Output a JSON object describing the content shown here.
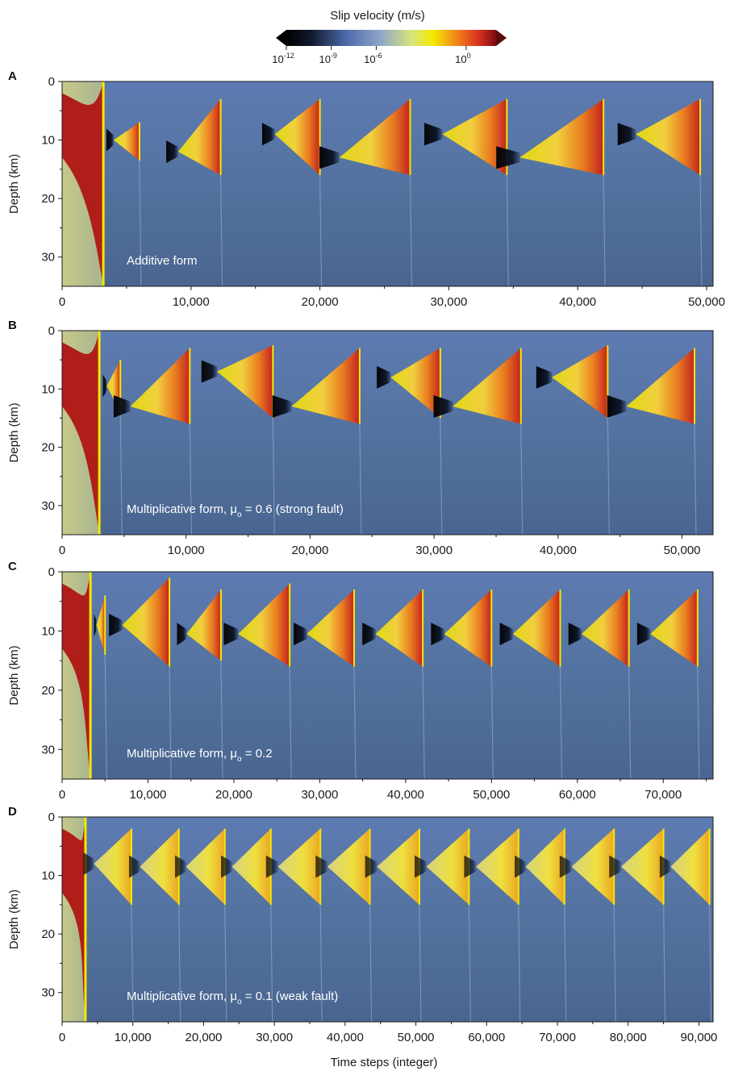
{
  "colorbar": {
    "title": "Slip velocity (m/s)",
    "ticks": [
      {
        "base": "10",
        "exp": "-12",
        "value_log10": -12
      },
      {
        "base": "10",
        "exp": "-9",
        "value_log10": -9
      },
      {
        "base": "10",
        "exp": "-6",
        "value_log10": -6
      },
      {
        "base": "10",
        "exp": "0",
        "value_log10": 0
      }
    ],
    "scale": "log",
    "colors": [
      "#000000",
      "#1e2c48",
      "#5a7fc0",
      "#8fa6c8",
      "#d9e67a",
      "#f5e800",
      "#f07d1a",
      "#d7301f",
      "#8a0f10"
    ]
  },
  "xlabel": "Time steps (integer)",
  "chart_data": [
    {
      "type": "heatmap",
      "panel_label": "A",
      "annotation": {
        "text": "Additive form",
        "sym": "",
        "sub": "",
        "rest": ""
      },
      "ylabel": "Depth (km)",
      "yticks": [
        "0",
        "10",
        "20",
        "30"
      ],
      "ylim": [
        0,
        35
      ],
      "y_inverted": true,
      "xlim": [
        0,
        50500
      ],
      "xticks": [
        0,
        10000,
        20000,
        30000,
        40000,
        50000
      ],
      "xtick_labels": [
        "0",
        "10,000",
        "20,000",
        "30,000",
        "40,000",
        "50,000"
      ],
      "spinup_end": 3200,
      "events": [
        {
          "t_start": 4000,
          "t_end": 6000,
          "hypo_depth": 10,
          "top_depth": 7,
          "bottom_depth": 13.5
        },
        {
          "t_start": 9000,
          "t_end": 12300,
          "hypo_depth": 12,
          "top_depth": 3,
          "bottom_depth": 16
        },
        {
          "t_start": 16500,
          "t_end": 20000,
          "hypo_depth": 9,
          "top_depth": 3,
          "bottom_depth": 16
        },
        {
          "t_start": 21500,
          "t_end": 27000,
          "hypo_depth": 13,
          "top_depth": 3,
          "bottom_depth": 16
        },
        {
          "t_start": 29500,
          "t_end": 34500,
          "hypo_depth": 9,
          "top_depth": 3,
          "bottom_depth": 16
        },
        {
          "t_start": 35500,
          "t_end": 42000,
          "hypo_depth": 13,
          "top_depth": 3,
          "bottom_depth": 16
        },
        {
          "t_start": 44500,
          "t_end": 49500,
          "hypo_depth": 9,
          "top_depth": 3,
          "bottom_depth": 16
        }
      ]
    },
    {
      "type": "heatmap",
      "panel_label": "B",
      "annotation": {
        "text": "Multiplicative form, ",
        "sym": "μ",
        "sub": "o",
        "rest": " = 0.6 (strong fault)"
      },
      "ylabel": "Depth (km)",
      "yticks": [
        "0",
        "10",
        "20",
        "30"
      ],
      "ylim": [
        0,
        35
      ],
      "y_inverted": true,
      "xlim": [
        0,
        52500
      ],
      "xticks": [
        0,
        10000,
        20000,
        30000,
        40000,
        50000
      ],
      "xtick_labels": [
        "0",
        "10,000",
        "20,000",
        "30,000",
        "40,000",
        "50,000"
      ],
      "spinup_end": 3000,
      "events": [
        {
          "t_start": 3600,
          "t_end": 4700,
          "hypo_depth": 9.5,
          "top_depth": 5,
          "bottom_depth": 14
        },
        {
          "t_start": 5500,
          "t_end": 10300,
          "hypo_depth": 13,
          "top_depth": 3,
          "bottom_depth": 16
        },
        {
          "t_start": 12500,
          "t_end": 17000,
          "hypo_depth": 7,
          "top_depth": 2.5,
          "bottom_depth": 15
        },
        {
          "t_start": 18500,
          "t_end": 24000,
          "hypo_depth": 13,
          "top_depth": 3,
          "bottom_depth": 16
        },
        {
          "t_start": 26500,
          "t_end": 30500,
          "hypo_depth": 8,
          "top_depth": 3,
          "bottom_depth": 15
        },
        {
          "t_start": 31500,
          "t_end": 37000,
          "hypo_depth": 13,
          "top_depth": 3,
          "bottom_depth": 16
        },
        {
          "t_start": 39500,
          "t_end": 44000,
          "hypo_depth": 8,
          "top_depth": 2.5,
          "bottom_depth": 15
        },
        {
          "t_start": 45500,
          "t_end": 51000,
          "hypo_depth": 13,
          "top_depth": 3,
          "bottom_depth": 16
        }
      ]
    },
    {
      "type": "heatmap",
      "panel_label": "C",
      "annotation": {
        "text": "Multiplicative form, ",
        "sym": "μ",
        "sub": "o",
        "rest": " = 0.2"
      },
      "ylabel": "Depth (km)",
      "yticks": [
        "0",
        "10",
        "20",
        "30"
      ],
      "ylim": [
        0,
        35
      ],
      "y_inverted": true,
      "xlim": [
        0,
        75800
      ],
      "xticks": [
        0,
        10000,
        20000,
        30000,
        40000,
        50000,
        60000,
        70000
      ],
      "xtick_labels": [
        "0",
        "10,000",
        "20,000",
        "30,000",
        "40,000",
        "50,000",
        "60,000",
        "70,000"
      ],
      "spinup_end": 3300,
      "events": [
        {
          "t_start": 4000,
          "t_end": 5000,
          "hypo_depth": 9,
          "top_depth": 4,
          "bottom_depth": 14
        },
        {
          "t_start": 7000,
          "t_end": 12500,
          "hypo_depth": 9,
          "top_depth": 1,
          "bottom_depth": 16
        },
        {
          "t_start": 14500,
          "t_end": 18500,
          "hypo_depth": 10.5,
          "top_depth": 3,
          "bottom_depth": 15
        },
        {
          "t_start": 20500,
          "t_end": 26500,
          "hypo_depth": 10.5,
          "top_depth": 2,
          "bottom_depth": 16
        },
        {
          "t_start": 28500,
          "t_end": 34000,
          "hypo_depth": 10.5,
          "top_depth": 3,
          "bottom_depth": 16
        },
        {
          "t_start": 36500,
          "t_end": 42000,
          "hypo_depth": 10.5,
          "top_depth": 3,
          "bottom_depth": 16
        },
        {
          "t_start": 44500,
          "t_end": 50000,
          "hypo_depth": 10.5,
          "top_depth": 3,
          "bottom_depth": 16
        },
        {
          "t_start": 52500,
          "t_end": 58000,
          "hypo_depth": 10.5,
          "top_depth": 3,
          "bottom_depth": 16
        },
        {
          "t_start": 60500,
          "t_end": 66000,
          "hypo_depth": 10.5,
          "top_depth": 3,
          "bottom_depth": 16
        },
        {
          "t_start": 68500,
          "t_end": 74000,
          "hypo_depth": 10.5,
          "top_depth": 3,
          "bottom_depth": 16
        }
      ]
    },
    {
      "type": "heatmap",
      "panel_label": "D",
      "annotation": {
        "text": "Multiplicative form, ",
        "sym": "μ",
        "sub": "o",
        "rest": " = 0.1 (weak fault)"
      },
      "ylabel": "Depth (km)",
      "yticks": [
        "0",
        "10",
        "20",
        "30"
      ],
      "ylim": [
        0,
        35
      ],
      "y_inverted": true,
      "xlim": [
        0,
        92000
      ],
      "xticks": [
        0,
        10000,
        20000,
        30000,
        40000,
        50000,
        60000,
        70000,
        80000,
        90000
      ],
      "xtick_labels": [
        "0",
        "10,000",
        "20,000",
        "30,000",
        "40,000",
        "50,000",
        "60,000",
        "70,000",
        "80,000",
        "90,000"
      ],
      "spinup_end": 3300,
      "events": [
        {
          "t_start": 4500,
          "t_end": 9800,
          "hypo_depth": 8,
          "top_depth": 2,
          "bottom_depth": 15
        },
        {
          "t_start": 11000,
          "t_end": 16500,
          "hypo_depth": 8.5,
          "top_depth": 2,
          "bottom_depth": 15
        },
        {
          "t_start": 17500,
          "t_end": 23000,
          "hypo_depth": 8.5,
          "top_depth": 2,
          "bottom_depth": 15
        },
        {
          "t_start": 24000,
          "t_end": 29500,
          "hypo_depth": 8.5,
          "top_depth": 2,
          "bottom_depth": 15
        },
        {
          "t_start": 30500,
          "t_end": 36500,
          "hypo_depth": 8.5,
          "top_depth": 2,
          "bottom_depth": 15
        },
        {
          "t_start": 37500,
          "t_end": 43500,
          "hypo_depth": 8.5,
          "top_depth": 2,
          "bottom_depth": 15
        },
        {
          "t_start": 44500,
          "t_end": 50500,
          "hypo_depth": 8.5,
          "top_depth": 2,
          "bottom_depth": 15
        },
        {
          "t_start": 51500,
          "t_end": 57500,
          "hypo_depth": 8.5,
          "top_depth": 2,
          "bottom_depth": 15
        },
        {
          "t_start": 58500,
          "t_end": 64500,
          "hypo_depth": 8.5,
          "top_depth": 2,
          "bottom_depth": 15
        },
        {
          "t_start": 65500,
          "t_end": 71000,
          "hypo_depth": 8.5,
          "top_depth": 2,
          "bottom_depth": 15
        },
        {
          "t_start": 72000,
          "t_end": 78000,
          "hypo_depth": 8.5,
          "top_depth": 2,
          "bottom_depth": 15
        },
        {
          "t_start": 79000,
          "t_end": 85000,
          "hypo_depth": 8.5,
          "top_depth": 2,
          "bottom_depth": 15
        },
        {
          "t_start": 86000,
          "t_end": 91500,
          "hypo_depth": 8.5,
          "top_depth": 2,
          "bottom_depth": 15
        }
      ]
    }
  ]
}
